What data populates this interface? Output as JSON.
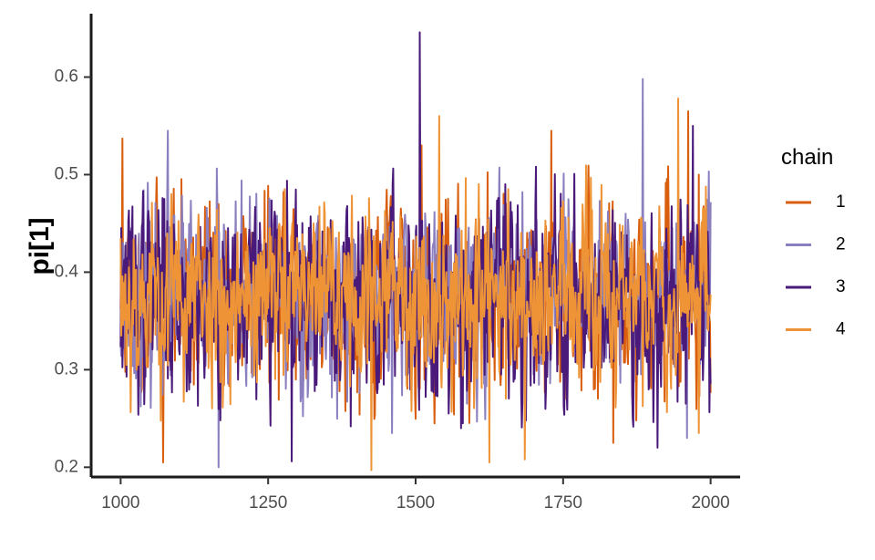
{
  "chart_data": {
    "type": "line",
    "title": "",
    "xlabel": "",
    "ylabel": "pi[1]",
    "xlim": [
      950,
      2050
    ],
    "ylim": [
      0.19,
      0.665
    ],
    "x_range": [
      1000,
      2000
    ],
    "x_ticks": [
      1000,
      1250,
      1500,
      1750,
      2000
    ],
    "y_ticks": [
      0.2,
      0.3,
      0.4,
      0.5,
      0.6
    ],
    "y_tick_labels": [
      "0.2",
      "0.3",
      "0.4",
      "0.5",
      "0.6"
    ],
    "grid": false,
    "legend": {
      "title": "chain",
      "position": "right"
    },
    "series": [
      {
        "name": "1",
        "color": "#d95f0e",
        "mean": 0.375,
        "sd": 0.048,
        "seed": 11,
        "extremes": [
          [
            1003,
            0.537
          ],
          [
            1072,
            0.205
          ],
          [
            1510,
            0.53
          ],
          [
            1730,
            0.545
          ],
          [
            1835,
            0.225
          ],
          [
            1962,
            0.565
          ],
          [
            1980,
            0.5
          ]
        ]
      },
      {
        "name": "2",
        "color": "#8c7fbf",
        "mean": 0.375,
        "sd": 0.045,
        "seed": 23,
        "extremes": [
          [
            1080,
            0.545
          ],
          [
            1166,
            0.2
          ],
          [
            1460,
            0.235
          ],
          [
            1885,
            0.598
          ],
          [
            1960,
            0.23
          ]
        ]
      },
      {
        "name": "3",
        "color": "#4a1a7a",
        "mean": 0.375,
        "sd": 0.05,
        "seed": 37,
        "extremes": [
          [
            1290,
            0.206
          ],
          [
            1507,
            0.646
          ],
          [
            1580,
            0.245
          ],
          [
            1910,
            0.22
          ],
          [
            1970,
            0.55
          ]
        ]
      },
      {
        "name": "4",
        "color": "#ee9436",
        "mean": 0.375,
        "sd": 0.045,
        "seed": 53,
        "extremes": [
          [
            1425,
            0.197
          ],
          [
            1540,
            0.56
          ],
          [
            1625,
            0.205
          ],
          [
            1685,
            0.208
          ],
          [
            1945,
            0.578
          ],
          [
            1980,
            0.235
          ]
        ]
      }
    ]
  }
}
